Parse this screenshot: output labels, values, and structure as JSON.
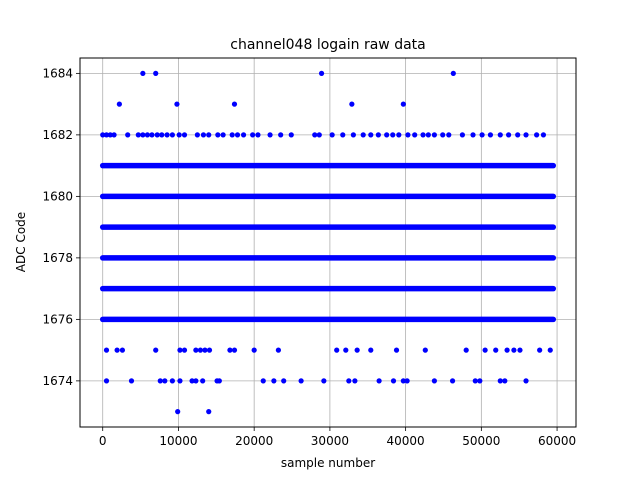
{
  "chart_data": {
    "type": "scatter",
    "title": "channel048 logain raw data",
    "xlabel": "sample number",
    "ylabel": "ADC Code",
    "xlim": [
      -3000,
      62500
    ],
    "ylim": [
      1672.5,
      1684.5
    ],
    "xticks": [
      0,
      10000,
      20000,
      30000,
      40000,
      50000,
      60000
    ],
    "yticks": [
      1674,
      1676,
      1678,
      1680,
      1682,
      1684
    ],
    "grid": true,
    "marker_color": "#0000ff",
    "series": [
      {
        "dense_bands": [
          {
            "y": 1676,
            "x_range": [
              0,
              59500
            ]
          },
          {
            "y": 1677,
            "x_range": [
              0,
              59500
            ]
          },
          {
            "y": 1678,
            "x_range": [
              0,
              59500
            ]
          },
          {
            "y": 1679,
            "x_range": [
              0,
              59500
            ]
          },
          {
            "y": 1680,
            "x_range": [
              0,
              59500
            ]
          },
          {
            "y": 1681,
            "x_range": [
              0,
              59500
            ]
          }
        ],
        "points": [
          {
            "x": 5300,
            "y": 1684
          },
          {
            "x": 7000,
            "y": 1684
          },
          {
            "x": 28900,
            "y": 1684
          },
          {
            "x": 46300,
            "y": 1684
          },
          {
            "x": 2200,
            "y": 1683
          },
          {
            "x": 9800,
            "y": 1683
          },
          {
            "x": 17400,
            "y": 1683
          },
          {
            "x": 32900,
            "y": 1683
          },
          {
            "x": 39700,
            "y": 1683
          },
          {
            "x": 0,
            "y": 1682
          },
          {
            "x": 500,
            "y": 1682
          },
          {
            "x": 1000,
            "y": 1682
          },
          {
            "x": 1500,
            "y": 1682
          },
          {
            "x": 3300,
            "y": 1682
          },
          {
            "x": 4700,
            "y": 1682
          },
          {
            "x": 5300,
            "y": 1682
          },
          {
            "x": 5900,
            "y": 1682
          },
          {
            "x": 6500,
            "y": 1682
          },
          {
            "x": 7200,
            "y": 1682
          },
          {
            "x": 7800,
            "y": 1682
          },
          {
            "x": 8500,
            "y": 1682
          },
          {
            "x": 9200,
            "y": 1682
          },
          {
            "x": 10100,
            "y": 1682
          },
          {
            "x": 10800,
            "y": 1682
          },
          {
            "x": 12500,
            "y": 1682
          },
          {
            "x": 13300,
            "y": 1682
          },
          {
            "x": 14000,
            "y": 1682
          },
          {
            "x": 15200,
            "y": 1682
          },
          {
            "x": 15900,
            "y": 1682
          },
          {
            "x": 17100,
            "y": 1682
          },
          {
            "x": 17800,
            "y": 1682
          },
          {
            "x": 18600,
            "y": 1682
          },
          {
            "x": 19800,
            "y": 1682
          },
          {
            "x": 20500,
            "y": 1682
          },
          {
            "x": 22100,
            "y": 1682
          },
          {
            "x": 23500,
            "y": 1682
          },
          {
            "x": 24900,
            "y": 1682
          },
          {
            "x": 28000,
            "y": 1682
          },
          {
            "x": 28600,
            "y": 1682
          },
          {
            "x": 30300,
            "y": 1682
          },
          {
            "x": 31700,
            "y": 1682
          },
          {
            "x": 33100,
            "y": 1682
          },
          {
            "x": 34400,
            "y": 1682
          },
          {
            "x": 35400,
            "y": 1682
          },
          {
            "x": 36400,
            "y": 1682
          },
          {
            "x": 37500,
            "y": 1682
          },
          {
            "x": 38300,
            "y": 1682
          },
          {
            "x": 39100,
            "y": 1682
          },
          {
            "x": 40300,
            "y": 1682
          },
          {
            "x": 41200,
            "y": 1682
          },
          {
            "x": 42300,
            "y": 1682
          },
          {
            "x": 43000,
            "y": 1682
          },
          {
            "x": 43800,
            "y": 1682
          },
          {
            "x": 44900,
            "y": 1682
          },
          {
            "x": 45700,
            "y": 1682
          },
          {
            "x": 47500,
            "y": 1682
          },
          {
            "x": 48900,
            "y": 1682
          },
          {
            "x": 50100,
            "y": 1682
          },
          {
            "x": 51200,
            "y": 1682
          },
          {
            "x": 52500,
            "y": 1682
          },
          {
            "x": 53600,
            "y": 1682
          },
          {
            "x": 54800,
            "y": 1682
          },
          {
            "x": 55900,
            "y": 1682
          },
          {
            "x": 57300,
            "y": 1682
          },
          {
            "x": 58200,
            "y": 1682
          },
          {
            "x": 500,
            "y": 1675
          },
          {
            "x": 1900,
            "y": 1675
          },
          {
            "x": 2600,
            "y": 1675
          },
          {
            "x": 7000,
            "y": 1675
          },
          {
            "x": 10200,
            "y": 1675
          },
          {
            "x": 10800,
            "y": 1675
          },
          {
            "x": 12300,
            "y": 1675
          },
          {
            "x": 12900,
            "y": 1675
          },
          {
            "x": 13500,
            "y": 1675
          },
          {
            "x": 14100,
            "y": 1675
          },
          {
            "x": 16800,
            "y": 1675
          },
          {
            "x": 17400,
            "y": 1675
          },
          {
            "x": 20000,
            "y": 1675
          },
          {
            "x": 23200,
            "y": 1675
          },
          {
            "x": 30900,
            "y": 1675
          },
          {
            "x": 32100,
            "y": 1675
          },
          {
            "x": 33600,
            "y": 1675
          },
          {
            "x": 35400,
            "y": 1675
          },
          {
            "x": 38800,
            "y": 1675
          },
          {
            "x": 42600,
            "y": 1675
          },
          {
            "x": 48000,
            "y": 1675
          },
          {
            "x": 50500,
            "y": 1675
          },
          {
            "x": 51900,
            "y": 1675
          },
          {
            "x": 53400,
            "y": 1675
          },
          {
            "x": 54300,
            "y": 1675
          },
          {
            "x": 55100,
            "y": 1675
          },
          {
            "x": 57700,
            "y": 1675
          },
          {
            "x": 59100,
            "y": 1675
          },
          {
            "x": 500,
            "y": 1674
          },
          {
            "x": 3800,
            "y": 1674
          },
          {
            "x": 7600,
            "y": 1674
          },
          {
            "x": 8200,
            "y": 1674
          },
          {
            "x": 9200,
            "y": 1674
          },
          {
            "x": 10200,
            "y": 1674
          },
          {
            "x": 11800,
            "y": 1674
          },
          {
            "x": 12300,
            "y": 1674
          },
          {
            "x": 13200,
            "y": 1674
          },
          {
            "x": 15100,
            "y": 1674
          },
          {
            "x": 15400,
            "y": 1674
          },
          {
            "x": 21200,
            "y": 1674
          },
          {
            "x": 22600,
            "y": 1674
          },
          {
            "x": 23900,
            "y": 1674
          },
          {
            "x": 26200,
            "y": 1674
          },
          {
            "x": 29200,
            "y": 1674
          },
          {
            "x": 32500,
            "y": 1674
          },
          {
            "x": 33300,
            "y": 1674
          },
          {
            "x": 36500,
            "y": 1674
          },
          {
            "x": 38400,
            "y": 1674
          },
          {
            "x": 39700,
            "y": 1674
          },
          {
            "x": 40200,
            "y": 1674
          },
          {
            "x": 43800,
            "y": 1674
          },
          {
            "x": 46200,
            "y": 1674
          },
          {
            "x": 49200,
            "y": 1674
          },
          {
            "x": 49800,
            "y": 1674
          },
          {
            "x": 52500,
            "y": 1674
          },
          {
            "x": 53100,
            "y": 1674
          },
          {
            "x": 55900,
            "y": 1674
          },
          {
            "x": 9900,
            "y": 1673
          },
          {
            "x": 14000,
            "y": 1673
          }
        ]
      }
    ]
  }
}
